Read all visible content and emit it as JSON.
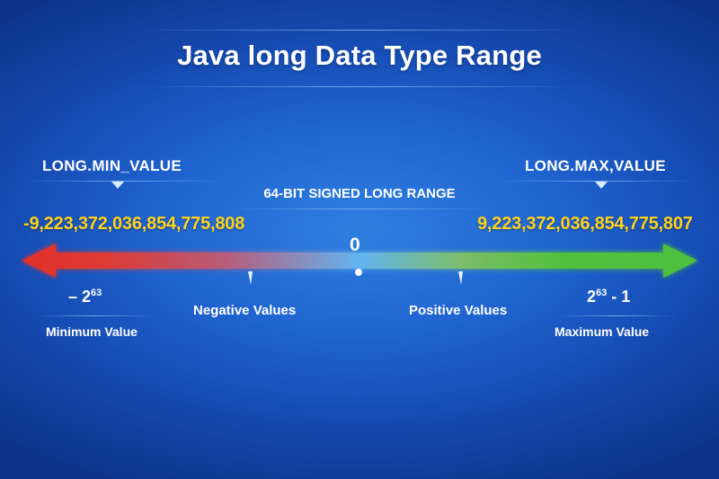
{
  "title": "Java long Data Type Range",
  "range_label": "64-BIT SIGNED LONG RANGE",
  "min": {
    "constant": "LONG.MIN_VALUE",
    "value": "-9,223,372,036,854,775,808",
    "power_prefix": "– 2",
    "power_exponent": "63",
    "power_suffix": "",
    "caption": "Minimum Value"
  },
  "max": {
    "constant": "LONG.MAX,VALUE",
    "value": "9,223,372,036,854,775,807",
    "power_prefix": "2",
    "power_exponent": "63",
    "power_suffix": " - 1",
    "caption": "Maximum Value"
  },
  "zero_label": "0",
  "negative_label": "Negative Values",
  "positive_label": "Positive Values",
  "colors": {
    "negative": "#e2312a",
    "center": "#62b4f0",
    "positive": "#4cc13c",
    "value_text": "#ffd21c"
  }
}
